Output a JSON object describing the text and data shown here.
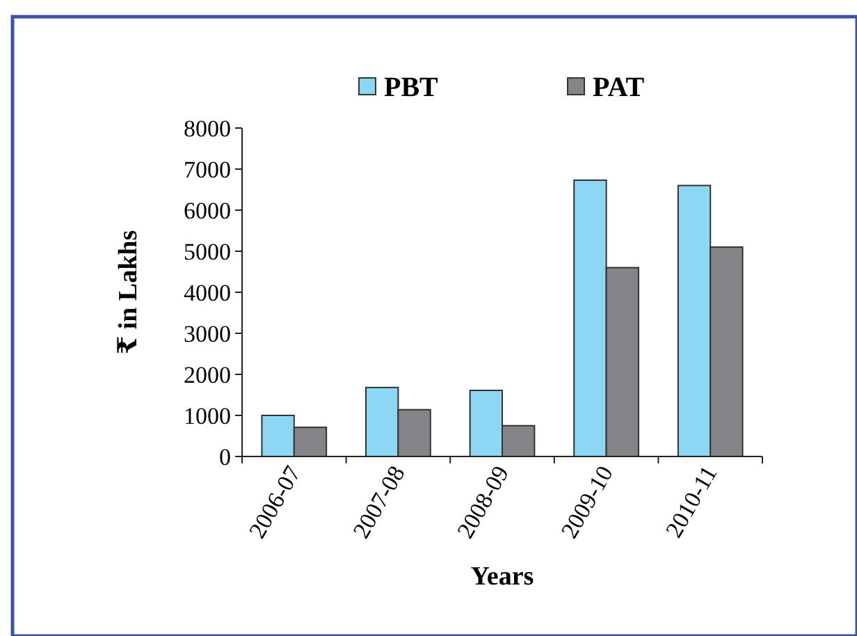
{
  "chart_data": {
    "type": "bar",
    "xlabel": "Years",
    "ylabel": "₹ in Lakhs",
    "categories": [
      "2006-07",
      "2007-08",
      "2008-09",
      "2009-10",
      "2010-11"
    ],
    "series": [
      {
        "name": "PBT",
        "color": "#8dd7f5",
        "values": [
          1000,
          1680,
          1610,
          6730,
          6600
        ]
      },
      {
        "name": "PAT",
        "color": "#848589",
        "values": [
          710,
          1140,
          750,
          4600,
          5100
        ]
      }
    ],
    "ylim": [
      0,
      8000
    ],
    "yticks": [
      0,
      1000,
      2000,
      3000,
      4000,
      5000,
      6000,
      7000,
      8000
    ],
    "legend": "top",
    "grid": false
  }
}
